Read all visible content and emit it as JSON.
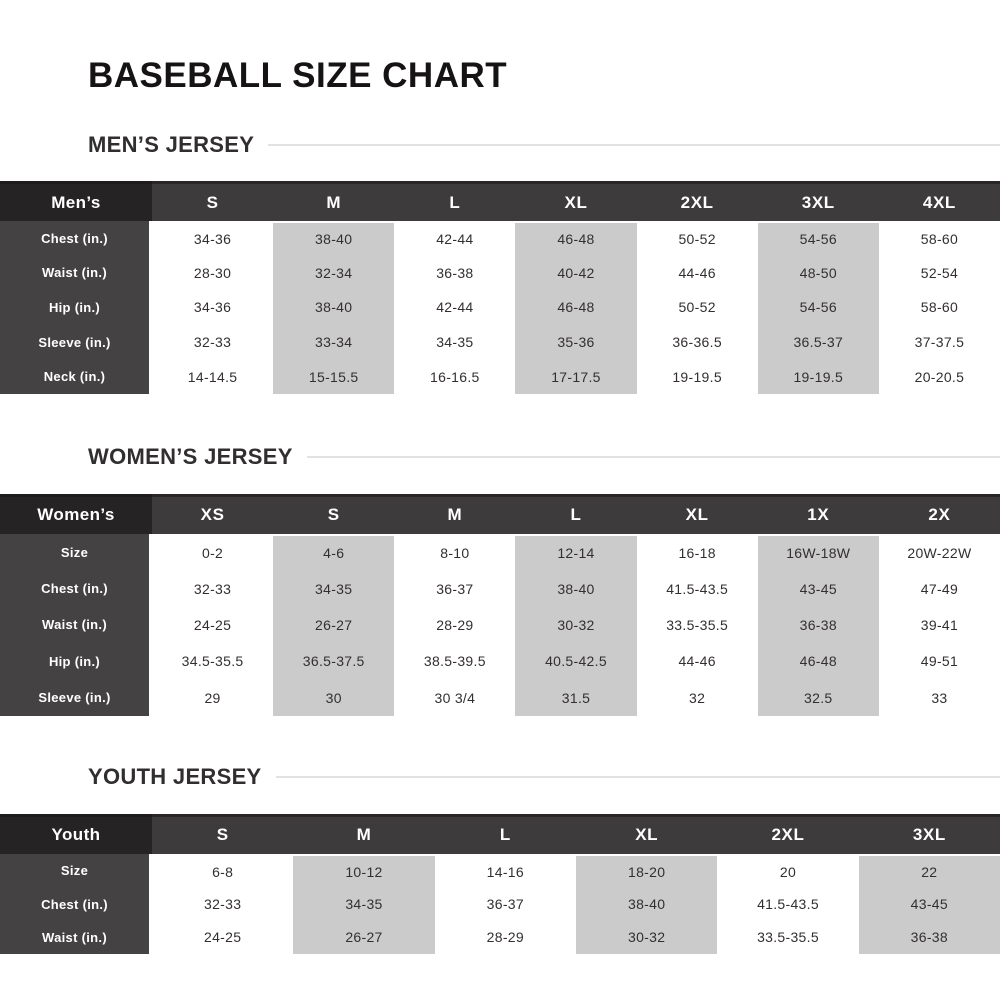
{
  "title": "BASEBALL SIZE CHART",
  "colors": {
    "header_bg": "#3e3b3c",
    "corner_bg": "#262324",
    "label_column_bg": "#454243",
    "shaded_column_bg": "#cbcbcb",
    "heading_text": "#312e2f",
    "title_text": "#151314",
    "rule_line": "#e2e2e2",
    "data_text": "#332f30"
  },
  "sections": [
    {
      "heading": "MEN’S JERSEY",
      "corner": "Men’s",
      "columns": [
        "S",
        "M",
        "L",
        "XL",
        "2XL",
        "3XL",
        "4XL"
      ],
      "rows": [
        {
          "label": "Chest (in.)",
          "values": [
            "34-36",
            "38-40",
            "42-44",
            "46-48",
            "50-52",
            "54-56",
            "58-60"
          ]
        },
        {
          "label": "Waist (in.)",
          "values": [
            "28-30",
            "32-34",
            "36-38",
            "40-42",
            "44-46",
            "48-50",
            "52-54"
          ]
        },
        {
          "label": "Hip (in.)",
          "values": [
            "34-36",
            "38-40",
            "42-44",
            "46-48",
            "50-52",
            "54-56",
            "58-60"
          ]
        },
        {
          "label": "Sleeve (in.)",
          "values": [
            "32-33",
            "33-34",
            "34-35",
            "35-36",
            "36-36.5",
            "36.5-37",
            "37-37.5"
          ]
        },
        {
          "label": "Neck (in.)",
          "values": [
            "14-14.5",
            "15-15.5",
            "16-16.5",
            "17-17.5",
            "19-19.5",
            "19-19.5",
            "20-20.5"
          ]
        }
      ]
    },
    {
      "heading": "WOMEN’S JERSEY",
      "corner": "Women’s",
      "columns": [
        "XS",
        "S",
        "M",
        "L",
        "XL",
        "1X",
        "2X"
      ],
      "rows": [
        {
          "label": "Size",
          "values": [
            "0-2",
            "4-6",
            "8-10",
            "12-14",
            "16-18",
            "16W-18W",
            "20W-22W"
          ]
        },
        {
          "label": "Chest (in.)",
          "values": [
            "32-33",
            "34-35",
            "36-37",
            "38-40",
            "41.5-43.5",
            "43-45",
            "47-49"
          ]
        },
        {
          "label": "Waist (in.)",
          "values": [
            "24-25",
            "26-27",
            "28-29",
            "30-32",
            "33.5-35.5",
            "36-38",
            "39-41"
          ]
        },
        {
          "label": "Hip (in.)",
          "values": [
            "34.5-35.5",
            "36.5-37.5",
            "38.5-39.5",
            "40.5-42.5",
            "44-46",
            "46-48",
            "49-51"
          ]
        },
        {
          "label": "Sleeve (in.)",
          "values": [
            "29",
            "30",
            "30 3/4",
            "31.5",
            "32",
            "32.5",
            "33"
          ]
        }
      ]
    },
    {
      "heading": "YOUTH JERSEY",
      "corner": "Youth",
      "columns": [
        "S",
        "M",
        "L",
        "XL",
        "2XL",
        "3XL"
      ],
      "rows": [
        {
          "label": "Size",
          "values": [
            "6-8",
            "10-12",
            "14-16",
            "18-20",
            "20",
            "22"
          ]
        },
        {
          "label": "Chest (in.)",
          "values": [
            "32-33",
            "34-35",
            "36-37",
            "38-40",
            "41.5-43.5",
            "43-45"
          ]
        },
        {
          "label": "Waist (in.)",
          "values": [
            "24-25",
            "26-27",
            "28-29",
            "30-32",
            "33.5-35.5",
            "36-38"
          ]
        }
      ]
    }
  ]
}
